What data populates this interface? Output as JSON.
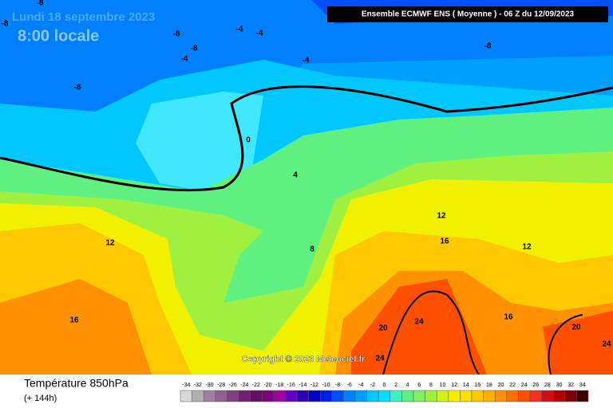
{
  "header": {
    "date": "Lundi 18 septembre 2023",
    "time": "8:00 locale",
    "model": "Ensemble ECMWF ENS  ( Moyenne )  -  06 Z du 12/09/2023"
  },
  "copyright": "Copyright © 2023 Meteociel.fr",
  "footer": {
    "title": "Température 850hPa",
    "subtitle": "(+ 144h)"
  },
  "contour_labels": [
    -8,
    -8,
    -8,
    -4,
    -4,
    -8,
    -4,
    -8,
    -4,
    -8,
    0,
    4,
    12,
    8,
    12,
    16,
    12,
    16,
    20,
    24,
    16,
    20,
    24,
    24
  ],
  "scale": {
    "values": [
      -34,
      -32,
      -30,
      -28,
      -26,
      -24,
      -22,
      -20,
      -18,
      -16,
      -14,
      -12,
      -10,
      -8,
      -6,
      -4,
      -2,
      0,
      2,
      4,
      6,
      8,
      10,
      12,
      14,
      16,
      18,
      20,
      22,
      24,
      26,
      28,
      30,
      32,
      34
    ],
    "colors": [
      "#d8d8d8",
      "#b0b0b0",
      "#a080a0",
      "#906090",
      "#804080",
      "#702070",
      "#601060",
      "#800080",
      "#a000a0",
      "#6000c0",
      "#3000b0",
      "#0000c0",
      "#0020e0",
      "#0050ff",
      "#0080ff",
      "#00a0ff",
      "#00c8ff",
      "#00e0ff",
      "#40f0c0",
      "#60f080",
      "#80f060",
      "#a0f040",
      "#d0f020",
      "#f0f000",
      "#ffe000",
      "#ffc800",
      "#ffb000",
      "#ff9000",
      "#ff7000",
      "#ff5000",
      "#f03020",
      "#d01010",
      "#b00000",
      "#800000",
      "#400000"
    ]
  }
}
